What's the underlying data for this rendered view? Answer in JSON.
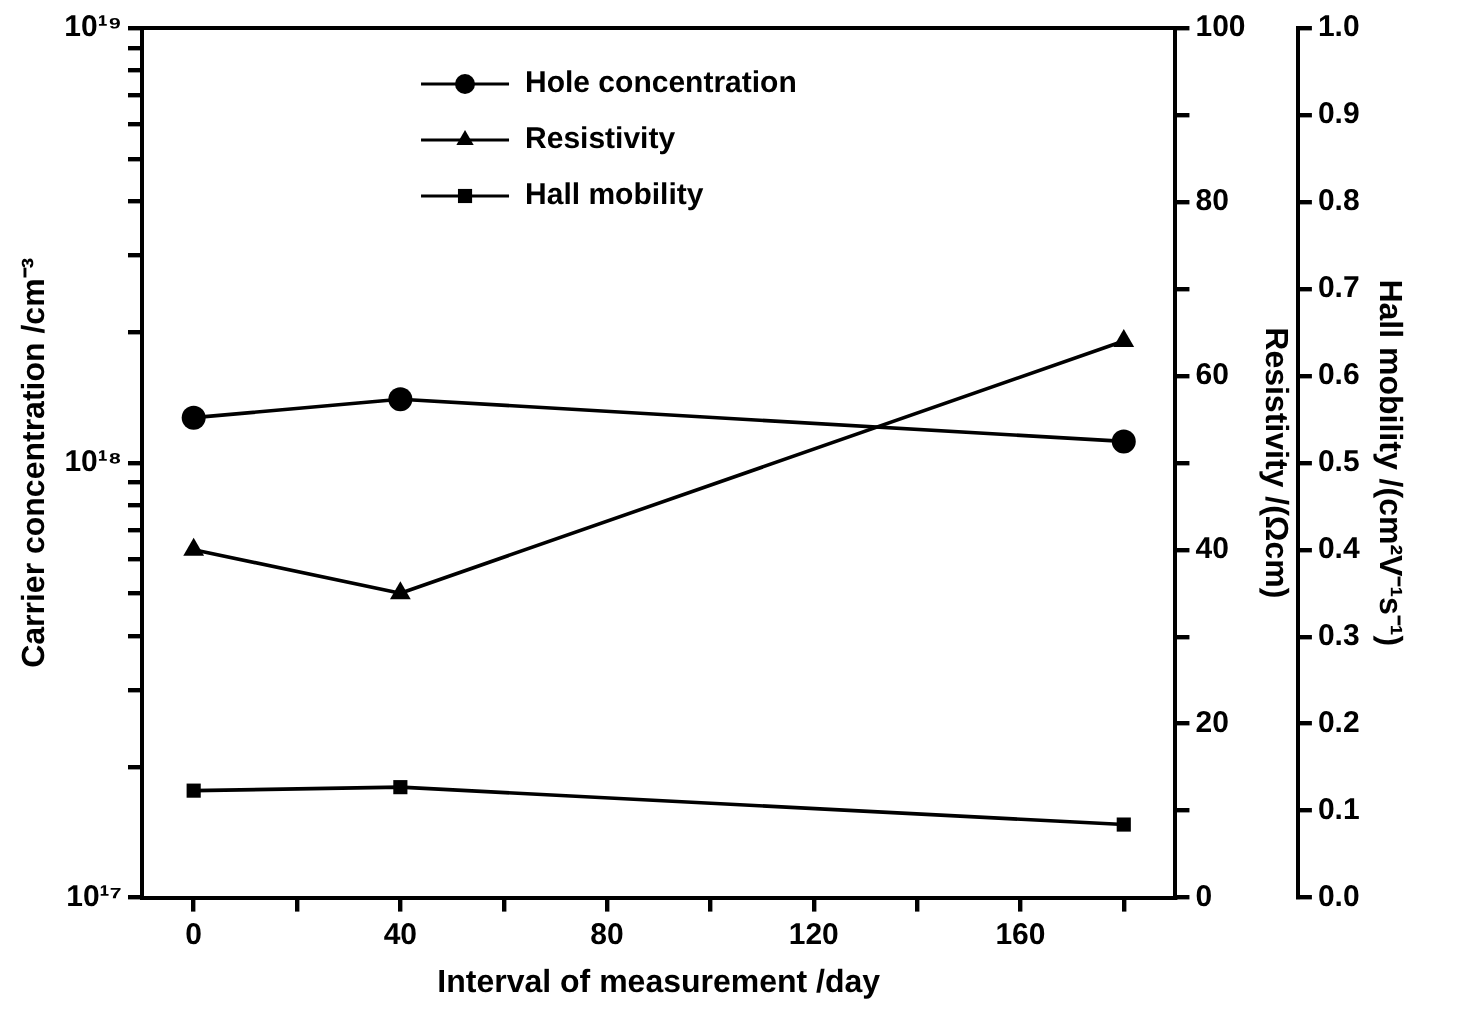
{
  "chart_data": {
    "type": "line",
    "xlabel": "Interval of measurement /day",
    "ylabel": "Carrier concentration /cm⁻³",
    "y2label": "Resistivity /(Ωcm)",
    "y3label": "Hall mobility /(cm²V⁻¹s⁻¹)",
    "x": [
      0,
      40,
      180
    ],
    "xlim": [
      -10,
      190
    ],
    "xticks": [
      0,
      {
        "value": 20,
        "label": null
      },
      40,
      {
        "value": 60,
        "label": null
      },
      80,
      {
        "value": 100,
        "label": null
      },
      120,
      {
        "value": 140,
        "label": null
      },
      160,
      {
        "value": 180,
        "label": null
      }
    ],
    "log": "y",
    "ylim": [
      1e+17,
      1e+19
    ],
    "yticks": [
      {
        "value": 1e+17,
        "label": "10¹⁷"
      },
      {
        "value": 2e+17,
        "label": null
      },
      {
        "value": 3e+17,
        "label": null
      },
      {
        "value": 4e+17,
        "label": null
      },
      {
        "value": 5e+17,
        "label": null
      },
      {
        "value": 6e+17,
        "label": null
      },
      {
        "value": 7e+17,
        "label": null
      },
      {
        "value": 8e+17,
        "label": null
      },
      {
        "value": 9e+17,
        "label": null
      },
      {
        "value": 1e+18,
        "label": "10¹⁸"
      },
      {
        "value": 2e+18,
        "label": null
      },
      {
        "value": 3e+18,
        "label": null
      },
      {
        "value": 4e+18,
        "label": null
      },
      {
        "value": 5e+18,
        "label": null
      },
      {
        "value": 6e+18,
        "label": null
      },
      {
        "value": 7e+18,
        "label": null
      },
      {
        "value": 8e+18,
        "label": null
      },
      {
        "value": 9e+18,
        "label": null
      },
      {
        "value": 1e+19,
        "label": "10¹⁹"
      }
    ],
    "y2lim": [
      0,
      100
    ],
    "y2ticks": [
      0,
      {
        "value": 10,
        "label": null
      },
      20,
      {
        "value": 30,
        "label": null
      },
      40,
      {
        "value": 50,
        "label": null
      },
      60,
      {
        "value": 70,
        "label": null
      },
      80,
      {
        "value": 90,
        "label": null
      },
      100
    ],
    "y3lim": [
      0,
      1
    ],
    "y3ticks": [
      {
        "value": 0,
        "label": "0.0"
      },
      0.1,
      0.2,
      0.3,
      0.4,
      0.5,
      0.6,
      0.7,
      0.8,
      0.9,
      {
        "value": 1,
        "label": "1.0"
      }
    ],
    "grid": false,
    "legend": "top",
    "line_style": "solid",
    "series": [
      {
        "name": "Hole concentration",
        "color": "#000000",
        "marker": "circle",
        "values": [
          1.27e+18,
          1.4e+18,
          1.12e+18
        ]
      },
      {
        "name": "Resistivity",
        "color": "#000000",
        "marker": "triangle",
        "axis": "y2",
        "values": [
          40,
          35,
          64
        ]
      },
      {
        "name": "Hall mobility",
        "color": "#000000",
        "marker": "square",
        "axis": "y3",
        "values": [
          0.123,
          0.127,
          0.084
        ]
      }
    ]
  }
}
